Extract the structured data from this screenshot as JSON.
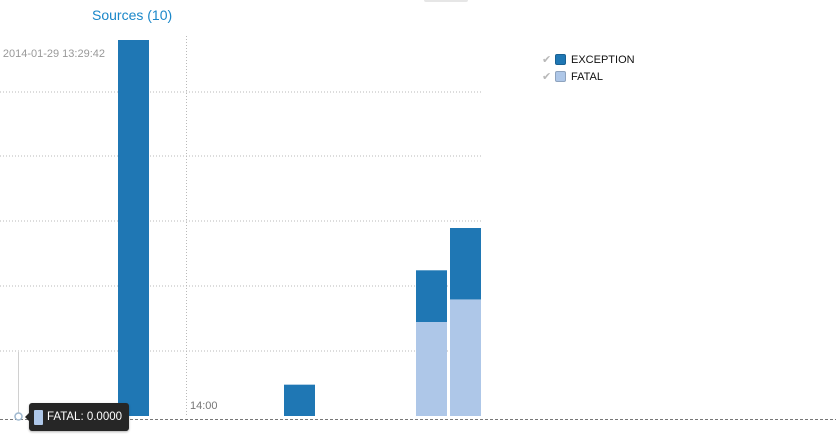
{
  "header": {
    "sources_label": "Sources (10)"
  },
  "colors": {
    "link": "#1a87c9",
    "tooltip_bg": "#262626"
  },
  "chart_data": {
    "type": "bar",
    "stacked": true,
    "x_ticks": [
      "2014-01-29 13:29:42",
      "14:00"
    ],
    "y_grid": true,
    "ylim": [
      0,
      1200
    ],
    "series": [
      {
        "name": "FATAL",
        "color": "#aec7e8",
        "values": [
          0,
          0,
          300,
          372
        ]
      },
      {
        "name": "EXCEPTION",
        "color": "#1f77b4",
        "values": [
          1200,
          100,
          165,
          228
        ]
      }
    ],
    "legend": {
      "placement": "top-right",
      "items": [
        {
          "label": "EXCEPTION",
          "color": "#1f77b4",
          "icon": "checkmark-icon"
        },
        {
          "label": "FATAL",
          "color": "#aec7e8",
          "icon": "checkmark-icon"
        }
      ]
    }
  },
  "tooltip": {
    "text": "FATAL: 0.0000",
    "color": "#aec7e8"
  }
}
